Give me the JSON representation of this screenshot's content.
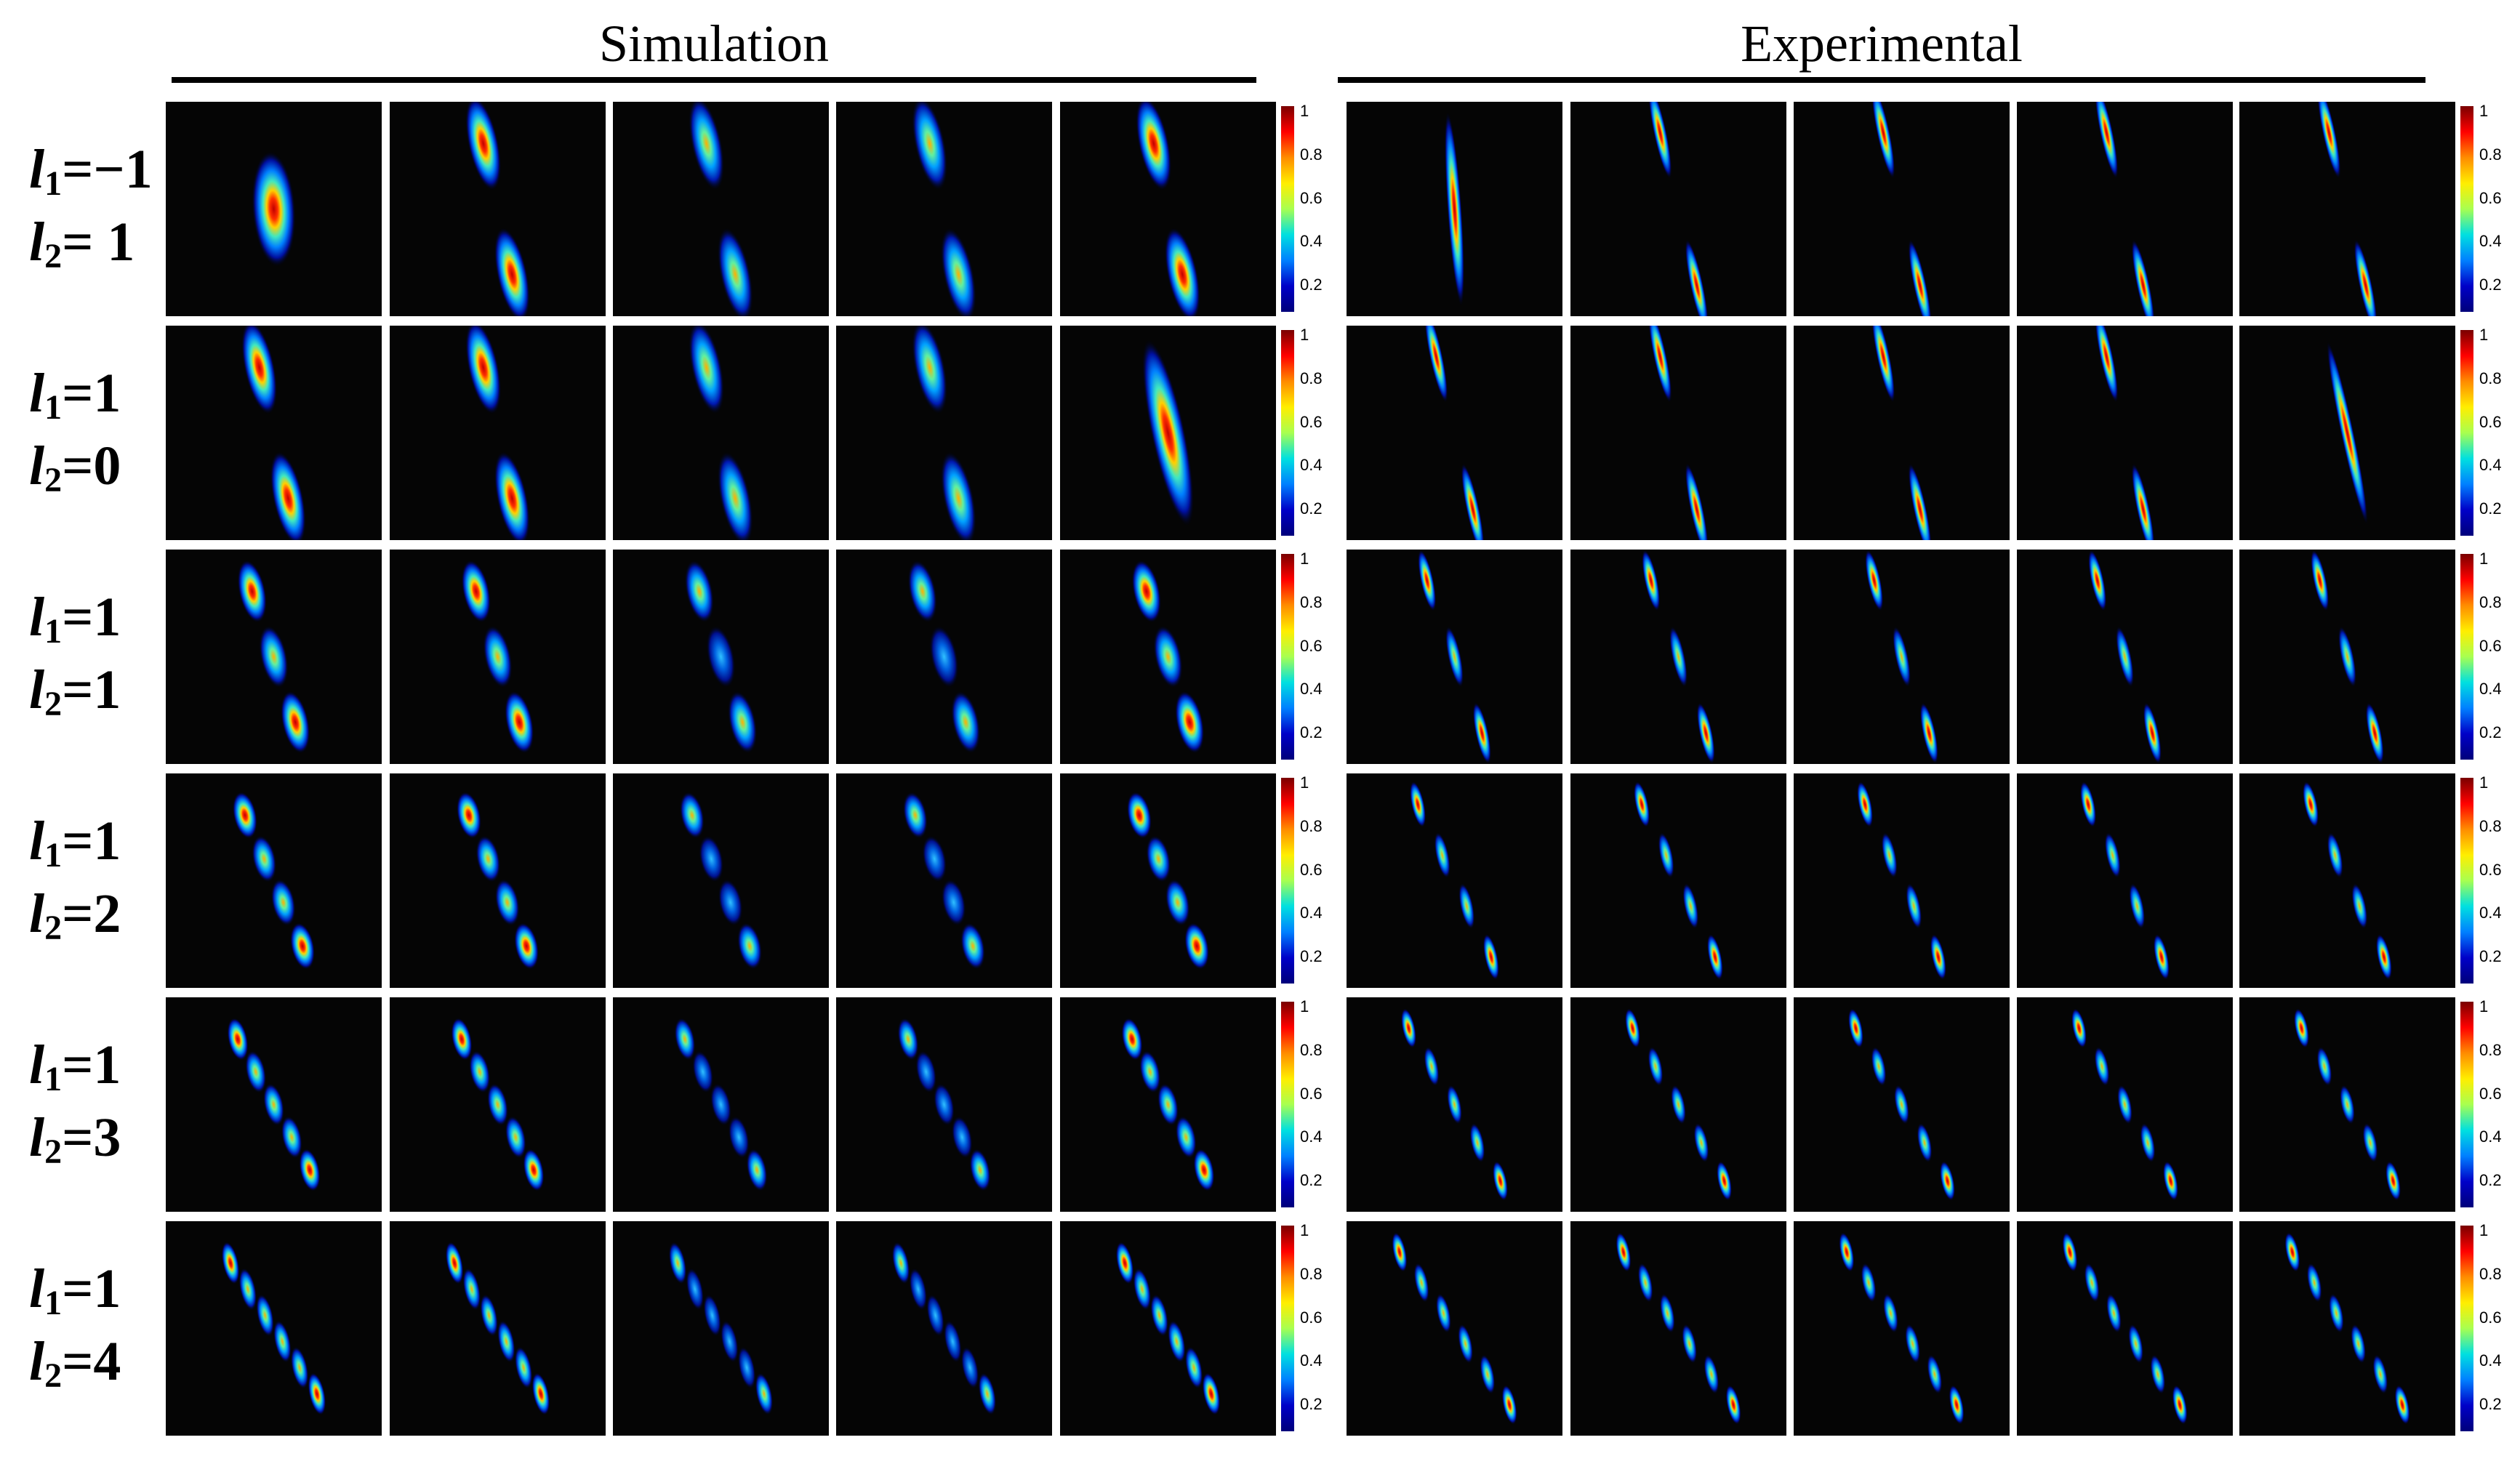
{
  "figure": {
    "headers": {
      "simulation": "Simulation",
      "experimental": "Experimental"
    },
    "rows": [
      {
        "l1_value": "=−1",
        "l2_value": "= 1"
      },
      {
        "l1_value": "=1",
        "l2_value": "=0"
      },
      {
        "l1_value": "=1",
        "l2_value": "=1"
      },
      {
        "l1_value": "=1",
        "l2_value": "=2"
      },
      {
        "l1_value": "=1",
        "l2_value": "=3"
      },
      {
        "l1_value": "=1",
        "l2_value": "=4"
      }
    ],
    "l1_symbol": "l",
    "l1_sub": "1",
    "l2_symbol": "l",
    "l2_sub": "2",
    "colorbar_ticks": [
      "1",
      "0.8",
      "0.6",
      "0.4",
      "0.2"
    ],
    "panel_background": "#050505",
    "colormap": "jet",
    "panels_per_row": 5
  }
}
